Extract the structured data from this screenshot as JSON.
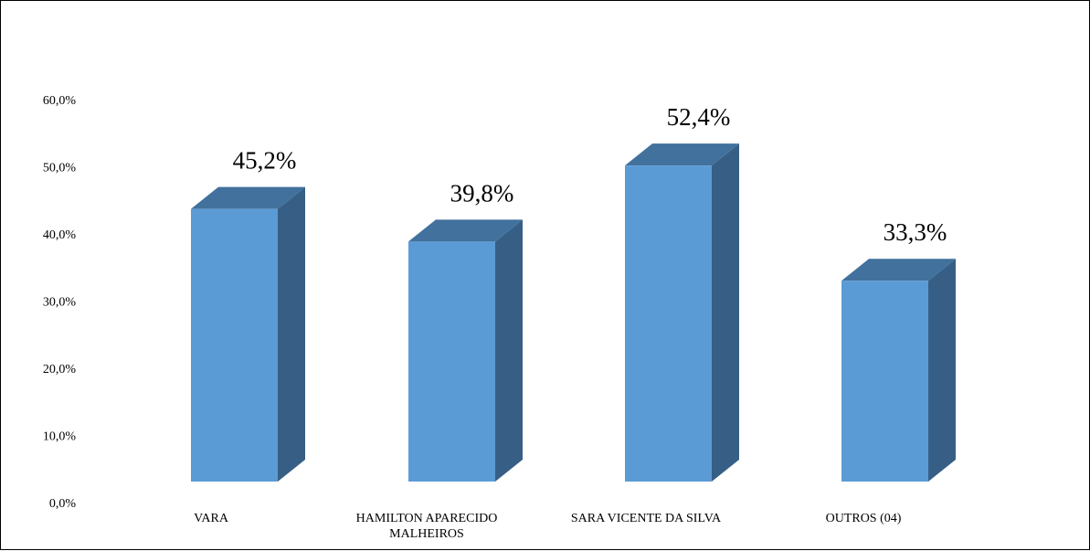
{
  "chart_data": {
    "type": "bar",
    "style": "3d-column",
    "categories": [
      [
        "VARA"
      ],
      [
        "HAMILTON APARECIDO",
        "MALHEIROS"
      ],
      [
        "SARA VICENTE DA SILVA"
      ],
      [
        "OUTROS (04)"
      ]
    ],
    "values": [
      45.2,
      39.8,
      52.4,
      33.3
    ],
    "data_labels": [
      "45,2%",
      "39,8%",
      "52,4%",
      "33,3%"
    ],
    "ylim": [
      0,
      60
    ],
    "yticks": [
      "0,0%",
      "10,0%",
      "20,0%",
      "30,0%",
      "40,0%",
      "50,0%",
      "60,0%"
    ],
    "grid": false,
    "legend": "none",
    "colors": {
      "front": "#5b9bd5",
      "top": "#41719c",
      "side": "#375f86"
    }
  }
}
